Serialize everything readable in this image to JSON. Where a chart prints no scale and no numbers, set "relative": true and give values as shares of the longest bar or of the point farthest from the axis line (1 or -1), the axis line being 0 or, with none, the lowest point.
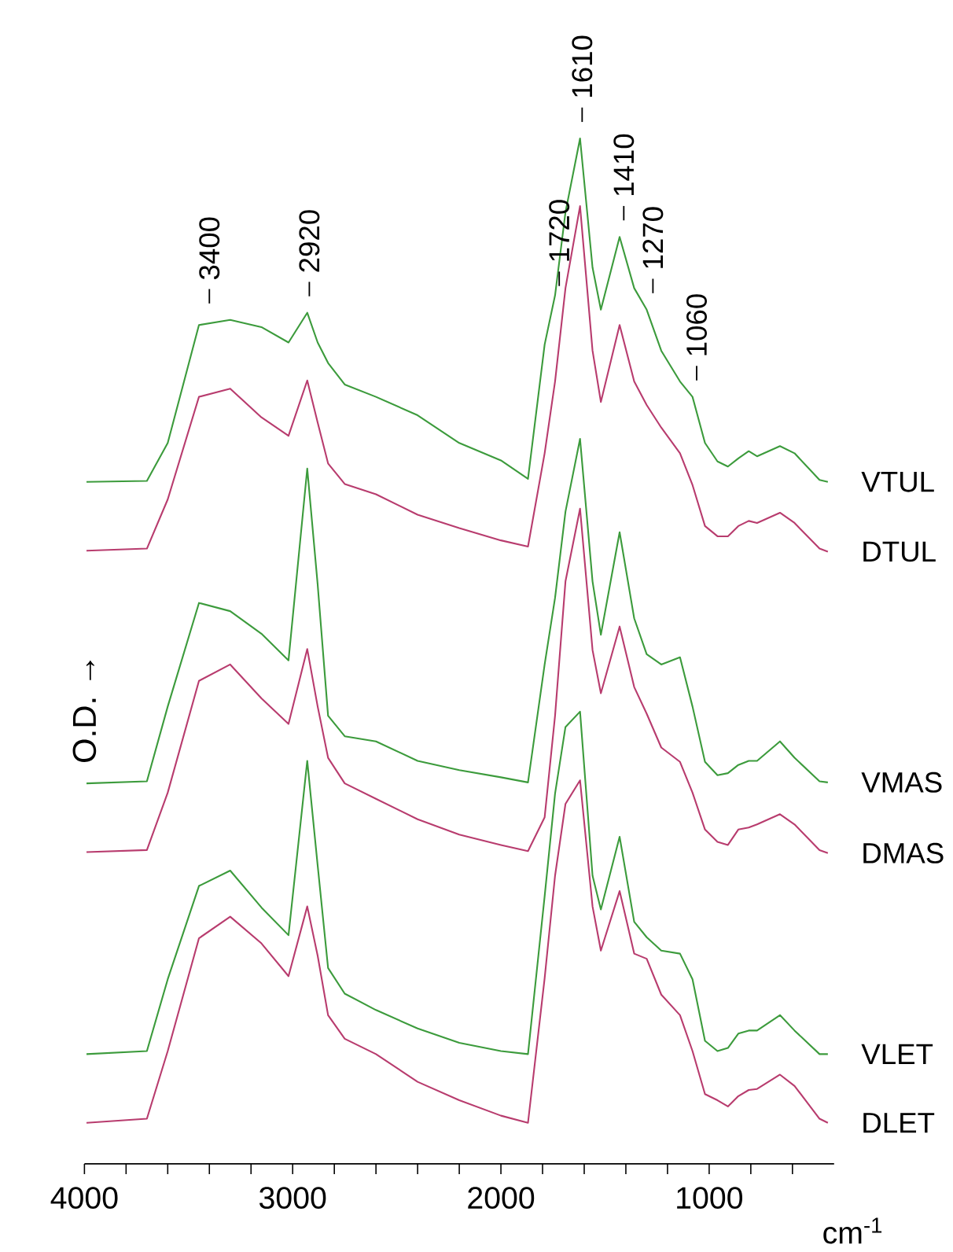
{
  "chart_data": {
    "type": "line",
    "relative": true,
    "xlabel": "cm$^{-1}$",
    "ylabel": "O.D. →",
    "xlim": [
      4000,
      400
    ],
    "xticks": [
      4000,
      {
        "value": 3800,
        "label": null
      },
      {
        "value": 3600,
        "label": null
      },
      {
        "value": 3400,
        "label": null
      },
      {
        "value": 3200,
        "label": null
      },
      3000,
      {
        "value": 2800,
        "label": null
      },
      {
        "value": 2600,
        "label": null
      },
      {
        "value": 2400,
        "label": null
      },
      {
        "value": 2200,
        "label": null
      },
      2000,
      {
        "value": 1800,
        "label": null
      },
      {
        "value": 1600,
        "label": null
      },
      {
        "value": 1400,
        "label": null
      },
      {
        "value": 1200,
        "label": null
      },
      1000,
      {
        "value": 800,
        "label": null
      },
      {
        "value": 600,
        "label": null
      }
    ],
    "x": [
      3990,
      3700,
      3600,
      3450,
      3300,
      3150,
      3020,
      2930,
      2880,
      2830,
      2750,
      2600,
      2400,
      2200,
      2000,
      1870,
      1790,
      1740,
      1690,
      1620,
      1560,
      1520,
      1430,
      1360,
      1300,
      1230,
      1140,
      1080,
      1020,
      960,
      910,
      860,
      810,
      770,
      660,
      590,
      470,
      430
    ],
    "series": [
      {
        "name": "VTUL",
        "color": "#3c9b3c",
        "values": [
          0.665,
          0.666,
          0.703,
          0.818,
          0.823,
          0.816,
          0.801,
          0.83,
          0.801,
          0.781,
          0.76,
          0.748,
          0.73,
          0.703,
          0.686,
          0.668,
          0.799,
          0.847,
          0.928,
          1.0,
          0.874,
          0.833,
          0.904,
          0.854,
          0.833,
          0.793,
          0.763,
          0.748,
          0.703,
          0.685,
          0.68,
          0.688,
          0.695,
          0.69,
          0.7,
          0.693,
          0.667,
          0.665
        ]
      },
      {
        "name": "DTUL",
        "color": "#b83c6e",
        "values": [
          0.598,
          0.6,
          0.648,
          0.748,
          0.756,
          0.728,
          0.71,
          0.764,
          0.723,
          0.683,
          0.663,
          0.653,
          0.633,
          0.62,
          0.608,
          0.602,
          0.693,
          0.763,
          0.854,
          0.934,
          0.793,
          0.743,
          0.818,
          0.763,
          0.74,
          0.718,
          0.693,
          0.662,
          0.622,
          0.612,
          0.612,
          0.622,
          0.627,
          0.625,
          0.635,
          0.625,
          0.6,
          0.597
        ]
      },
      {
        "name": "VMAS",
        "color": "#3c9b3c",
        "values": [
          0.371,
          0.373,
          0.446,
          0.547,
          0.539,
          0.517,
          0.491,
          0.678,
          0.565,
          0.437,
          0.417,
          0.412,
          0.393,
          0.384,
          0.377,
          0.372,
          0.487,
          0.552,
          0.636,
          0.707,
          0.568,
          0.516,
          0.616,
          0.532,
          0.497,
          0.487,
          0.494,
          0.446,
          0.392,
          0.379,
          0.381,
          0.389,
          0.393,
          0.393,
          0.412,
          0.396,
          0.373,
          0.372
        ]
      },
      {
        "name": "DMAS",
        "color": "#b83c6e",
        "values": [
          0.304,
          0.306,
          0.362,
          0.471,
          0.487,
          0.454,
          0.429,
          0.502,
          0.446,
          0.396,
          0.371,
          0.356,
          0.336,
          0.321,
          0.311,
          0.305,
          0.338,
          0.437,
          0.568,
          0.639,
          0.501,
          0.459,
          0.524,
          0.465,
          0.439,
          0.406,
          0.392,
          0.362,
          0.326,
          0.314,
          0.311,
          0.326,
          0.328,
          0.331,
          0.341,
          0.331,
          0.306,
          0.303
        ]
      },
      {
        "name": "VLET",
        "color": "#3c9b3c",
        "values": [
          0.107,
          0.11,
          0.18,
          0.271,
          0.286,
          0.25,
          0.223,
          0.393,
          0.291,
          0.191,
          0.166,
          0.15,
          0.132,
          0.118,
          0.11,
          0.107,
          0.261,
          0.361,
          0.426,
          0.441,
          0.281,
          0.248,
          0.319,
          0.236,
          0.221,
          0.208,
          0.205,
          0.18,
          0.12,
          0.11,
          0.113,
          0.127,
          0.13,
          0.13,
          0.145,
          0.13,
          0.107,
          0.107
        ]
      },
      {
        "name": "DLET",
        "color": "#b83c6e",
        "values": [
          0.04,
          0.044,
          0.11,
          0.22,
          0.241,
          0.215,
          0.183,
          0.251,
          0.203,
          0.145,
          0.122,
          0.107,
          0.08,
          0.062,
          0.047,
          0.04,
          0.181,
          0.281,
          0.351,
          0.374,
          0.251,
          0.208,
          0.266,
          0.205,
          0.2,
          0.165,
          0.145,
          0.11,
          0.068,
          0.062,
          0.056,
          0.066,
          0.072,
          0.073,
          0.087,
          0.076,
          0.044,
          0.04
        ]
      }
    ],
    "annotations": [
      {
        "text": "3400",
        "x": 3400,
        "y": 0.823
      },
      {
        "text": "2920",
        "x": 2920,
        "y": 0.83
      },
      {
        "text": "1720",
        "x": 1720,
        "y": 0.84
      },
      {
        "text": "1610",
        "x": 1610,
        "y": 1.0
      },
      {
        "text": "1410",
        "x": 1410,
        "y": 0.904
      },
      {
        "text": "1270",
        "x": 1270,
        "y": 0.833
      },
      {
        "text": "1060",
        "x": 1060,
        "y": 0.748
      }
    ]
  }
}
